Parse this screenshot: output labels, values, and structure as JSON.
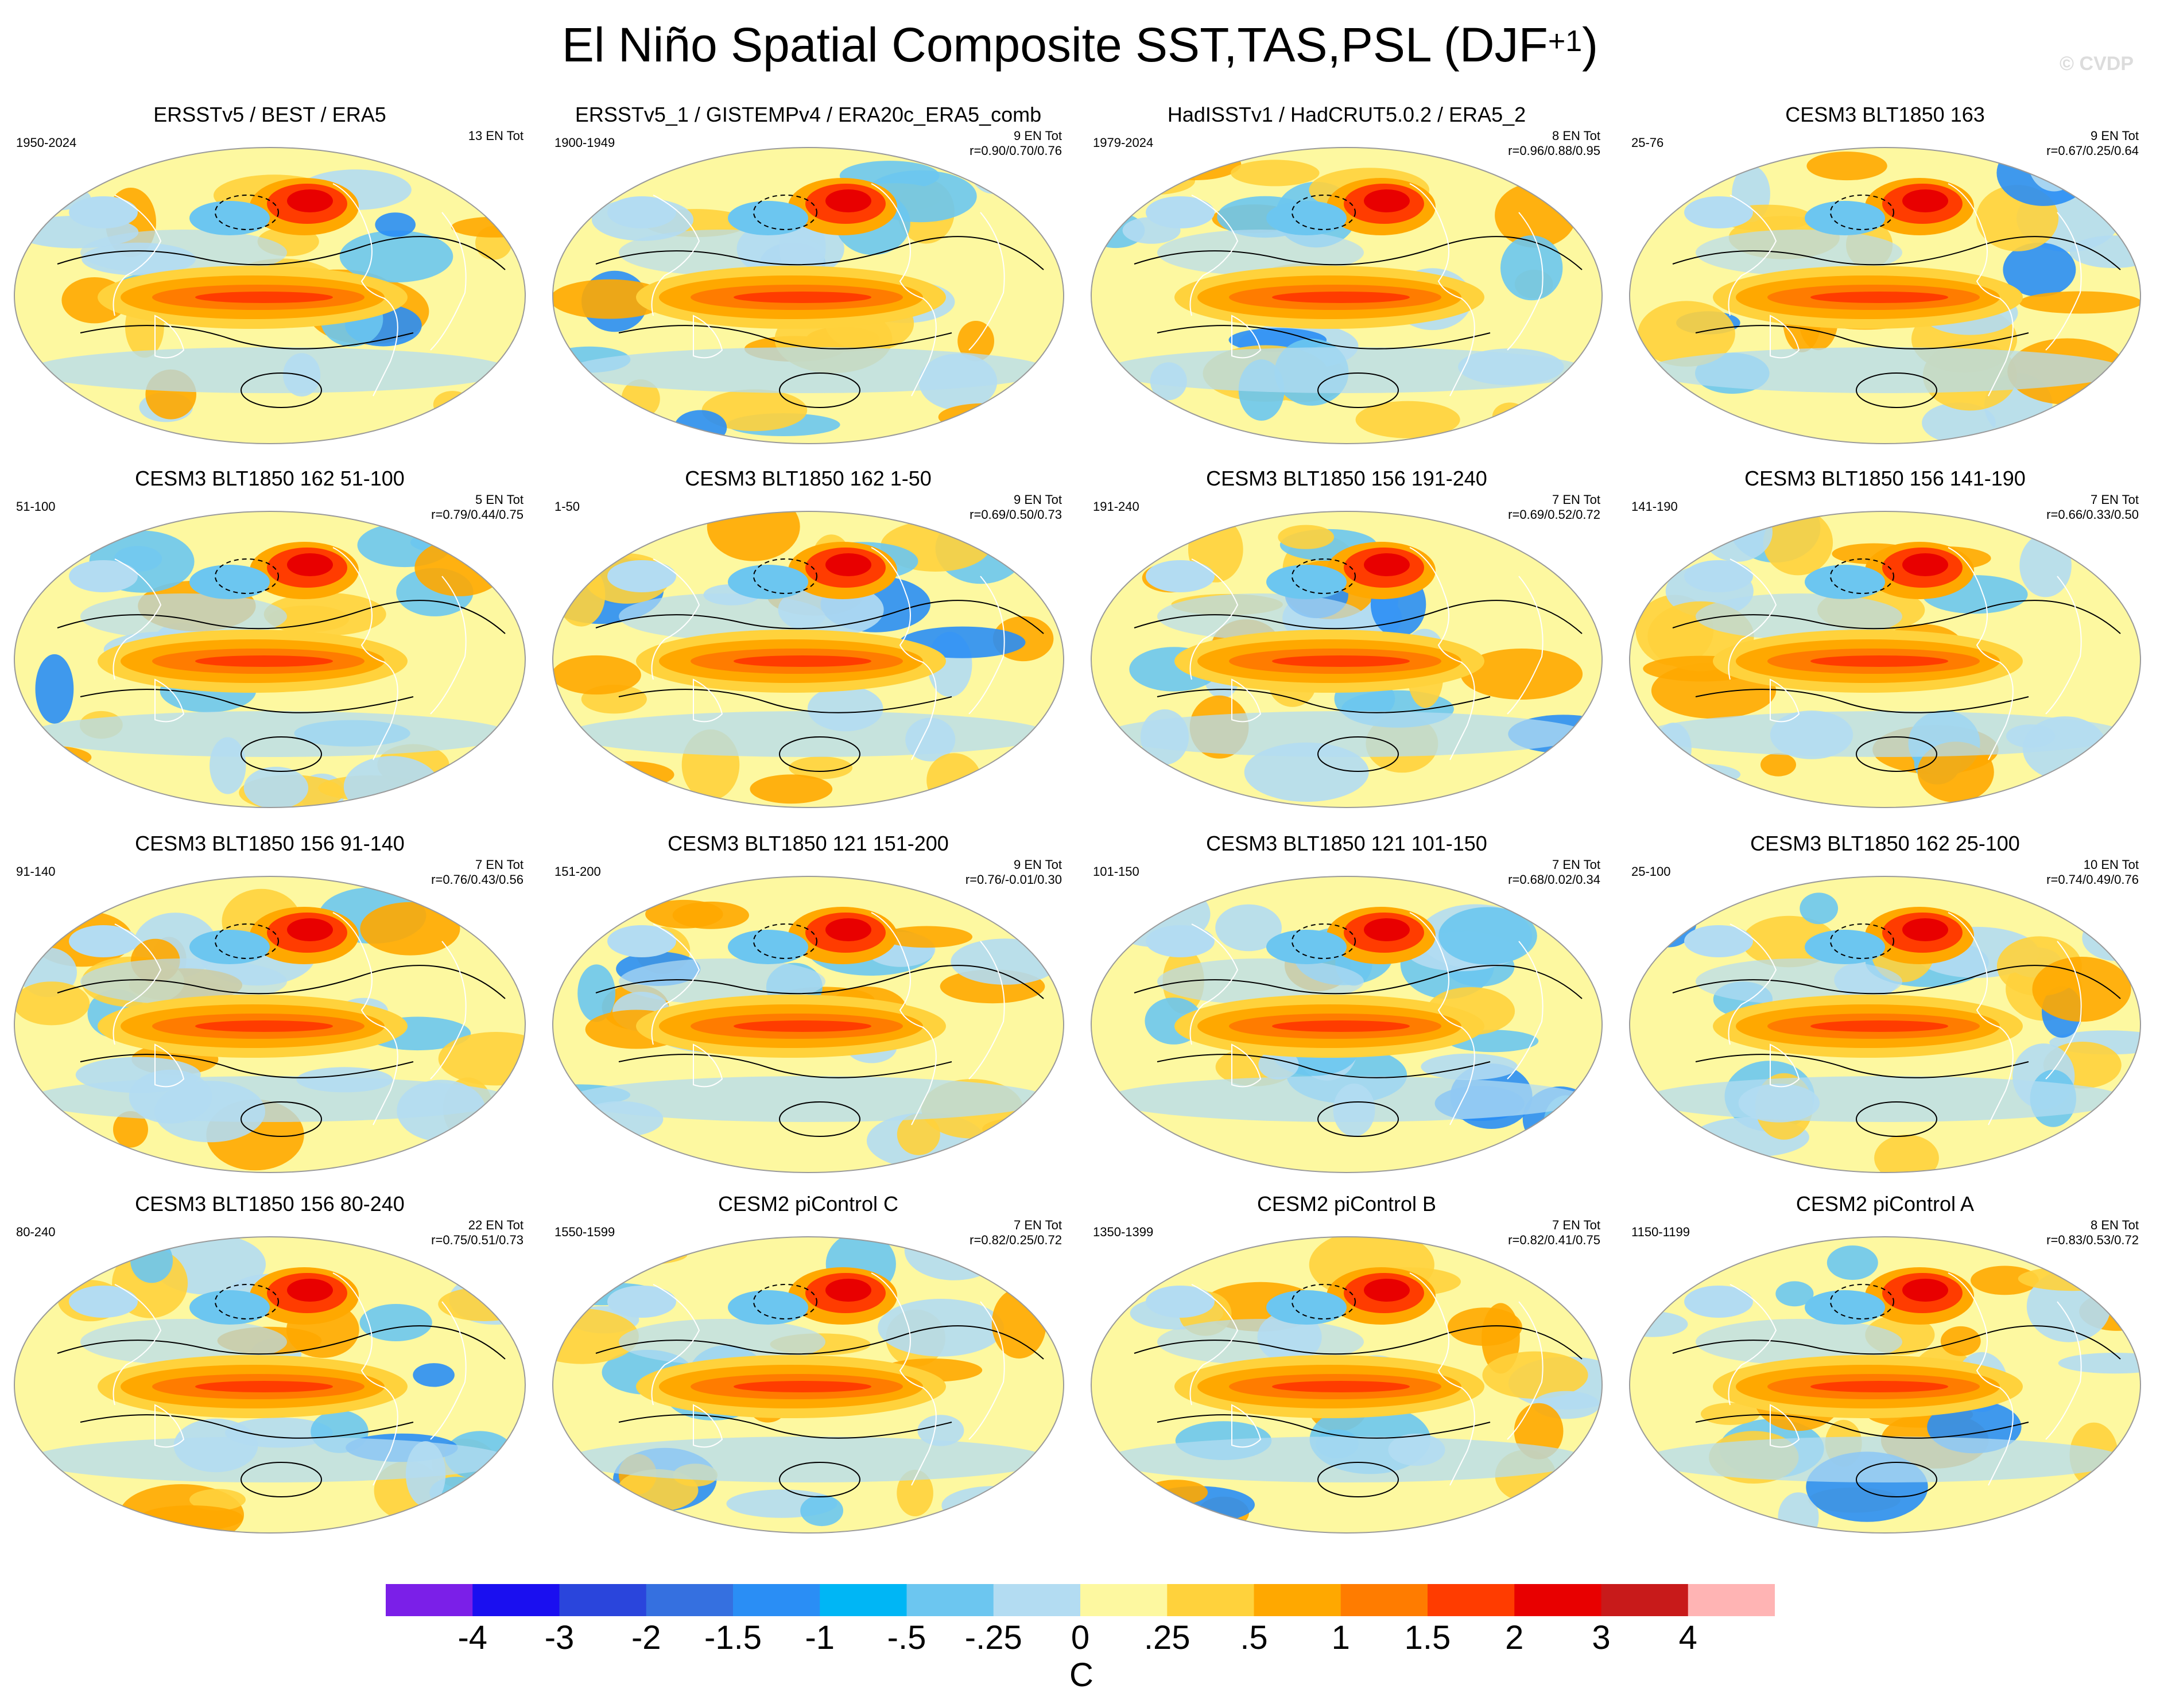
{
  "title_main": "El Niño Spatial Composite SST,TAS,PSL (DJF",
  "title_sup": "+1",
  "title_close": ")",
  "watermark": "© CVDP",
  "panels": [
    {
      "title": "ERSSTv5 / BEST / ERA5",
      "period": "1950-2024",
      "en": "13 EN Tot",
      "r": ""
    },
    {
      "title": "ERSSTv5_1 / GISTEMPv4 / ERA20c_ERA5_comb",
      "period": "1900-1949",
      "en": "9 EN Tot",
      "r": "r=0.90/0.70/0.76"
    },
    {
      "title": "HadISSTv1 / HadCRUT5.0.2 / ERA5_2",
      "period": "1979-2024",
      "en": "8 EN Tot",
      "r": "r=0.96/0.88/0.95"
    },
    {
      "title": "CESM3 BLT1850 163",
      "period": "25-76",
      "en": "9 EN Tot",
      "r": "r=0.67/0.25/0.64"
    },
    {
      "title": "CESM3 BLT1850 162 51-100",
      "period": "51-100",
      "en": "5 EN Tot",
      "r": "r=0.79/0.44/0.75"
    },
    {
      "title": "CESM3 BLT1850 162 1-50",
      "period": "1-50",
      "en": "9 EN Tot",
      "r": "r=0.69/0.50/0.73"
    },
    {
      "title": "CESM3 BLT1850 156 191-240",
      "period": "191-240",
      "en": "7 EN Tot",
      "r": "r=0.69/0.52/0.72"
    },
    {
      "title": "CESM3 BLT1850 156 141-190",
      "period": "141-190",
      "en": "7 EN Tot",
      "r": "r=0.66/0.33/0.50"
    },
    {
      "title": "CESM3 BLT1850 156 91-140",
      "period": "91-140",
      "en": "7 EN Tot",
      "r": "r=0.76/0.43/0.56"
    },
    {
      "title": "CESM3 BLT1850 121 151-200",
      "period": "151-200",
      "en": "9 EN Tot",
      "r": "r=0.76/-0.01/0.30"
    },
    {
      "title": "CESM3 BLT1850 121 101-150",
      "period": "101-150",
      "en": "7 EN Tot",
      "r": "r=0.68/0.02/0.34"
    },
    {
      "title": "CESM3 BLT1850 162 25-100",
      "period": "25-100",
      "en": "10 EN Tot",
      "r": "r=0.74/0.49/0.76"
    },
    {
      "title": "CESM3 BLT1850 156 80-240",
      "period": "80-240",
      "en": "22 EN Tot",
      "r": "r=0.75/0.51/0.73"
    },
    {
      "title": "CESM2 piControl C",
      "period": "1550-1599",
      "en": "7 EN Tot",
      "r": "r=0.82/0.25/0.72"
    },
    {
      "title": "CESM2 piControl B",
      "period": "1350-1399",
      "en": "7 EN Tot",
      "r": "r=0.82/0.41/0.75"
    },
    {
      "title": "CESM2 piControl A",
      "period": "1150-1199",
      "en": "8 EN Tot",
      "r": "r=0.83/0.53/0.72"
    }
  ],
  "colorbar": {
    "colors": [
      "#7b1fe8",
      "#1a0ff0",
      "#2a45dc",
      "#3570e0",
      "#2a8ef5",
      "#00b6f5",
      "#6cc6f0",
      "#b3dcf2",
      "#fdf8a0",
      "#ffd23c",
      "#ffa800",
      "#ff7c00",
      "#ff3c00",
      "#e80000",
      "#c81a1a",
      "#ffb4b4"
    ],
    "labels": [
      "-4",
      "-3",
      "-2",
      "-1.5",
      "-1",
      "-.5",
      "-.25",
      "0",
      ".25",
      ".5",
      "1",
      "1.5",
      "2",
      "3",
      "4"
    ],
    "unit": "C"
  },
  "map_colors": {
    "ocean_base": "#fdf8a0",
    "light_blue": "#b3dcf2",
    "mid_blue": "#6cc6f0",
    "blue": "#2a8ef5",
    "dark_blue": "#2a45dc",
    "yellow_orange": "#ffd23c",
    "orange": "#ffa800",
    "dark_orange": "#ff7c00",
    "red": "#ff3c00",
    "dark_red": "#e80000"
  }
}
